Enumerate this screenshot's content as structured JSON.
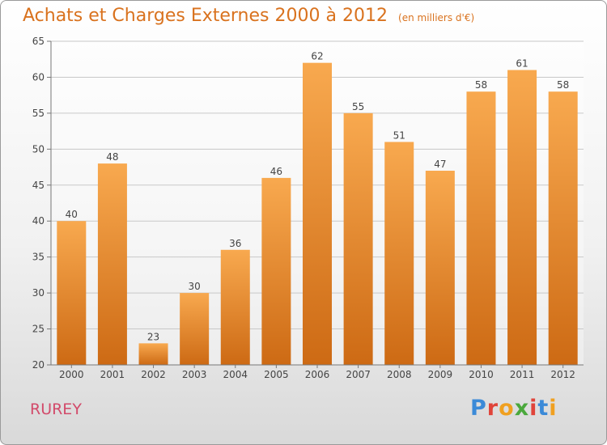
{
  "chart_data": {
    "type": "bar",
    "title": "Achats et Charges Externes 2000 à 2012",
    "subtitle": "(en milliers d'€)",
    "categories": [
      "2000",
      "2001",
      "2002",
      "2003",
      "2004",
      "2005",
      "2006",
      "2007",
      "2008",
      "2009",
      "2010",
      "2011",
      "2012"
    ],
    "values": [
      40,
      48,
      23,
      30,
      36,
      46,
      62,
      55,
      51,
      47,
      58,
      61,
      58
    ],
    "ylim": [
      20,
      65
    ],
    "yticks": [
      20,
      25,
      30,
      35,
      40,
      45,
      50,
      55,
      60,
      65
    ],
    "grid": true,
    "bar_color": "#f0942f"
  },
  "footer": {
    "commune": "RUREY",
    "logo": "Proxiti"
  },
  "colors": {
    "title": "#d9721e",
    "commune": "#d24a6a",
    "logo": [
      "#3b8ad8",
      "#e0443a",
      "#f0a020",
      "#4aa83c",
      "#e0443a",
      "#3b8ad8",
      "#f0a020"
    ]
  }
}
